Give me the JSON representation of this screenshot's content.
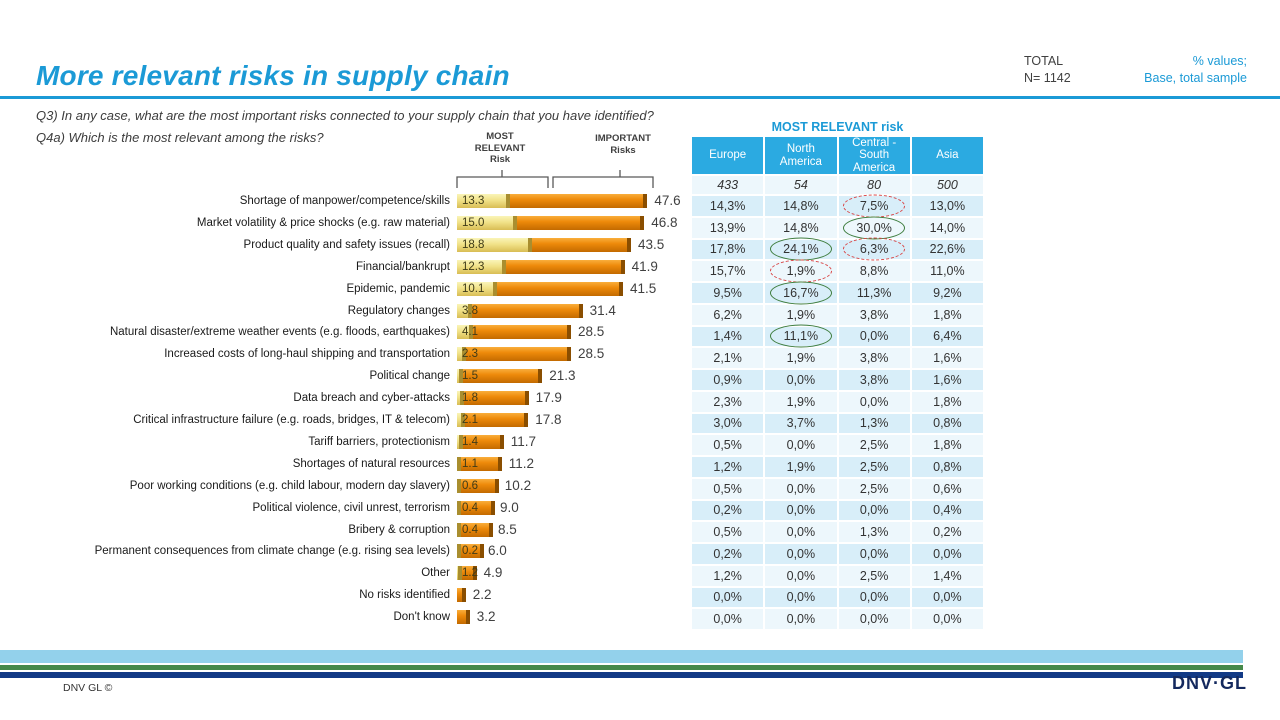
{
  "header": {
    "title": "More relevant risks in supply chain",
    "total_label": "TOTAL",
    "total_n": "N= 1142",
    "note_line1": "% values;",
    "note_line2": "Base, total sample"
  },
  "questions": {
    "q3": "Q3) In any case, what are the most important risks connected to your supply chain that you have identified?",
    "q4a": "Q4a) Which is the most relevant among the risks?"
  },
  "chart_data": {
    "type": "bar",
    "title": "More relevant risks in supply chain",
    "orientation": "horizontal",
    "xlim": [
      0,
      50
    ],
    "series_labels": {
      "most_relevant": "MOST\nRELEVANT\nRisk",
      "important": "IMPORTANT\nRisks"
    },
    "categories": [
      "Shortage of manpower/competence/skills",
      "Market volatility & price shocks (e.g. raw material)",
      "Product quality and safety issues (recall)",
      "Financial/bankrupt",
      "Epidemic, pandemic",
      "Regulatory changes",
      "Natural disaster/extreme weather events (e.g. floods, earthquakes)",
      "Increased costs of long-haul shipping and transportation",
      "Political change",
      "Data breach and cyber-attacks",
      "Critical infrastructure failure (e.g. roads, bridges, IT & telecom)",
      "Tariff barriers, protectionism",
      "Shortages of natural resources",
      "Poor working conditions (e.g. child labour, modern day slavery)",
      "Political violence, civil  unrest, terrorism",
      "Bribery & corruption",
      "Permanent consequences from climate change (e.g. rising sea levels)",
      "Other",
      "No risks identified",
      "Don't know"
    ],
    "series": [
      {
        "name": "Most relevant risk",
        "values": [
          13.3,
          15.0,
          18.8,
          12.3,
          10.1,
          3.8,
          4.1,
          2.3,
          1.5,
          1.8,
          2.1,
          1.4,
          1.1,
          0.6,
          0.4,
          0.4,
          0.2,
          1.2,
          null,
          null
        ]
      },
      {
        "name": "Important risks",
        "values": [
          47.6,
          46.8,
          43.5,
          41.9,
          41.5,
          31.4,
          28.5,
          28.5,
          21.3,
          17.9,
          17.8,
          11.7,
          11.2,
          10.2,
          9.0,
          8.5,
          6.0,
          4.9,
          2.2,
          3.2
        ]
      }
    ]
  },
  "table": {
    "title": "MOST RELEVANT risk",
    "columns": [
      "Europe",
      "North America",
      "Central - South America",
      "Asia"
    ],
    "base_counts": [
      "433",
      "54",
      "80",
      "500"
    ],
    "rows": [
      [
        "14,3%",
        "14,8%",
        "7,5%",
        "13,0%"
      ],
      [
        "13,9%",
        "14,8%",
        "30,0%",
        "14,0%"
      ],
      [
        "17,8%",
        "24,1%",
        "6,3%",
        "22,6%"
      ],
      [
        "15,7%",
        "1,9%",
        "8,8%",
        "11,0%"
      ],
      [
        "9,5%",
        "16,7%",
        "11,3%",
        "9,2%"
      ],
      [
        "6,2%",
        "1,9%",
        "3,8%",
        "1,8%"
      ],
      [
        "1,4%",
        "11,1%",
        "0,0%",
        "6,4%"
      ],
      [
        "2,1%",
        "1,9%",
        "3,8%",
        "1,6%"
      ],
      [
        "0,9%",
        "0,0%",
        "3,8%",
        "1,6%"
      ],
      [
        "2,3%",
        "1,9%",
        "0,0%",
        "1,8%"
      ],
      [
        "3,0%",
        "3,7%",
        "1,3%",
        "0,8%"
      ],
      [
        "0,5%",
        "0,0%",
        "2,5%",
        "1,8%"
      ],
      [
        "1,2%",
        "1,9%",
        "2,5%",
        "0,8%"
      ],
      [
        "0,5%",
        "0,0%",
        "2,5%",
        "0,6%"
      ],
      [
        "0,2%",
        "0,0%",
        "0,0%",
        "0,4%"
      ],
      [
        "0,5%",
        "0,0%",
        "1,3%",
        "0,2%"
      ],
      [
        "0,2%",
        "0,0%",
        "0,0%",
        "0,0%"
      ],
      [
        "1,2%",
        "0,0%",
        "2,5%",
        "1,4%"
      ],
      [
        "0,0%",
        "0,0%",
        "0,0%",
        "0,0%"
      ],
      [
        "0,0%",
        "0,0%",
        "0,0%",
        "0,0%"
      ]
    ],
    "highlights": [
      {
        "row": 0,
        "col": 2,
        "type": "negative"
      },
      {
        "row": 1,
        "col": 2,
        "type": "positive"
      },
      {
        "row": 2,
        "col": 1,
        "type": "positive"
      },
      {
        "row": 2,
        "col": 2,
        "type": "negative"
      },
      {
        "row": 3,
        "col": 1,
        "type": "negative"
      },
      {
        "row": 4,
        "col": 1,
        "type": "positive"
      },
      {
        "row": 6,
        "col": 1,
        "type": "positive"
      }
    ]
  },
  "footer": {
    "copyright": "DNV GL ©",
    "logo": "DNV·GL"
  },
  "colors": {
    "accent_blue": "#1b9ad6",
    "table_header_blue": "#2baae1",
    "row_dark": "#d8eef9",
    "row_light": "#edf7fc",
    "bar_yellow": "#f1e288",
    "bar_orange": "#ee8a0a",
    "highlight_positive": "#3e7d3e",
    "highlight_negative": "#d94545",
    "stripe_light_blue": "#93d1eb",
    "stripe_green": "#46894a",
    "stripe_navy": "#123a86"
  }
}
